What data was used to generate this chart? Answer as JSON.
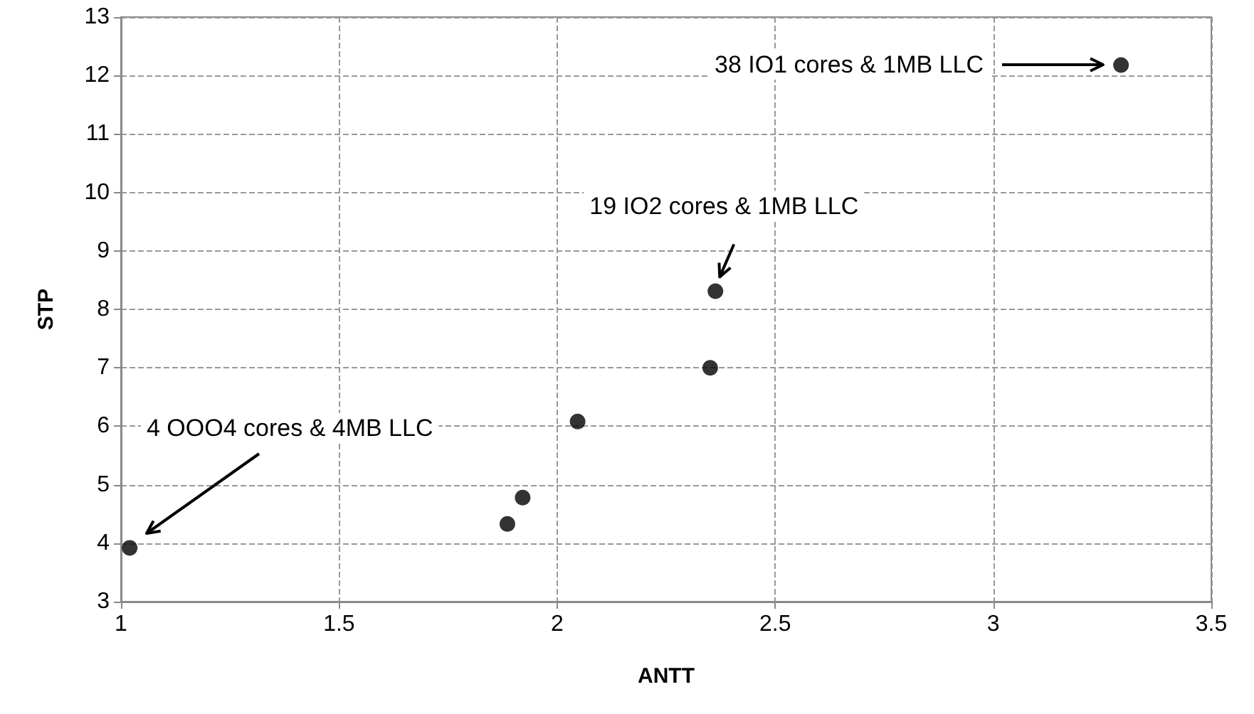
{
  "chart_data": {
    "type": "scatter",
    "xlabel": "ANTT",
    "ylabel": "STP",
    "series": [
      {
        "color": "#000000",
        "x": [
          1.02,
          1.886,
          1.921,
          2.047,
          2.351,
          2.363,
          3.293
        ],
        "values": [
          3.92,
          4.33,
          4.78,
          6.08,
          7.0,
          8.31,
          12.18
        ]
      }
    ],
    "xlim": [
      1,
      3.5
    ],
    "xticks": [
      1,
      1.5,
      2,
      2.5,
      3,
      3.5
    ],
    "ylim": [
      3,
      13
    ],
    "yticks": [
      3,
      4,
      5,
      6,
      7,
      8,
      9,
      10,
      11,
      12,
      13
    ],
    "grid": true,
    "marker": "circle",
    "annotations": [
      "38 IO1 cores & 1MB LLC",
      {
        "text": "19 IO2 cores & 1MB LLC",
        "x": 2.363,
        "y": 8.31
      },
      "4 OOO4 cores & 4MB LLC"
    ]
  }
}
